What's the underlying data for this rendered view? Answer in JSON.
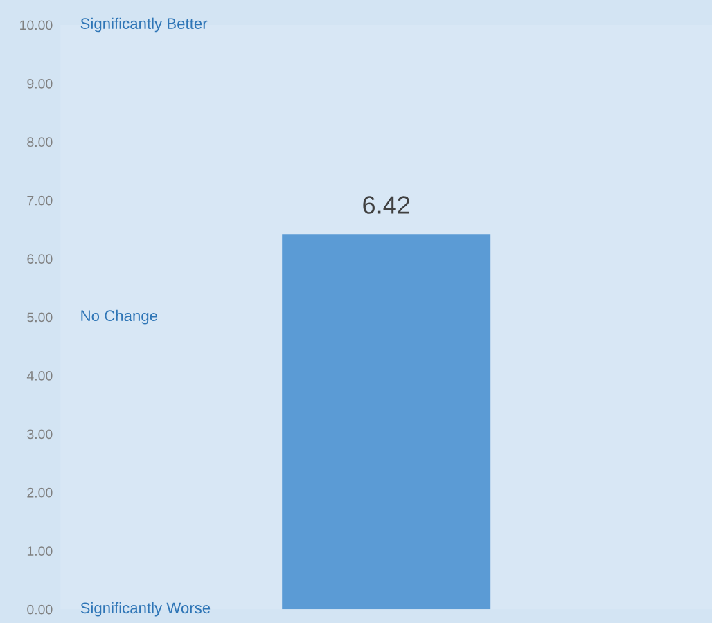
{
  "chart_data": {
    "type": "bar",
    "categories": [
      null
    ],
    "values": [
      6.42
    ],
    "color": "#5b9bd5",
    "data_labels": true,
    "ylim": [
      0,
      10
    ],
    "yticks": [
      {
        "value": 0,
        "label": "0.00"
      },
      {
        "value": 1,
        "label": "1.00"
      },
      {
        "value": 2,
        "label": "2.00"
      },
      {
        "value": 3,
        "label": "3.00"
      },
      {
        "value": 4,
        "label": "4.00"
      },
      {
        "value": 5,
        "label": "5.00"
      },
      {
        "value": 6,
        "label": "6.00"
      },
      {
        "value": 7,
        "label": "7.00"
      },
      {
        "value": 8,
        "label": "8.00"
      },
      {
        "value": 9,
        "label": "9.00"
      },
      {
        "value": 10,
        "label": "10.00"
      }
    ],
    "annotations": [
      "Significantly Better",
      "No Change",
      "Significantly Worse"
    ],
    "grid": false,
    "legend": false
  }
}
